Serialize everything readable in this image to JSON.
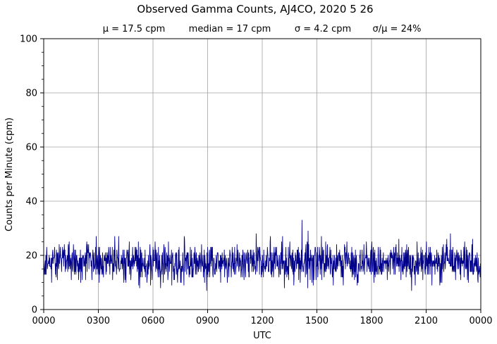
{
  "chart_data": {
    "type": "line",
    "title": "Observed Gamma Counts, AJ4CO, 2020 5 26",
    "subtitle": {
      "mean": "μ = 17.5 cpm",
      "median": "median = 17 cpm",
      "sigma": "σ = 4.2 cpm",
      "ratio": "σ/μ = 24%"
    },
    "xlabel": "UTC",
    "ylabel": "Counts per Minute (cpm)",
    "xlim_minutes": [
      0,
      1440
    ],
    "ylim": [
      0,
      100
    ],
    "x_ticks": [
      {
        "minute": 0,
        "label": "0000"
      },
      {
        "minute": 180,
        "label": "0300"
      },
      {
        "minute": 360,
        "label": "0600"
      },
      {
        "minute": 540,
        "label": "0900"
      },
      {
        "minute": 720,
        "label": "1200"
      },
      {
        "minute": 900,
        "label": "1500"
      },
      {
        "minute": 1080,
        "label": "1800"
      },
      {
        "minute": 1260,
        "label": "2100"
      },
      {
        "minute": 1440,
        "label": "0000"
      }
    ],
    "y_ticks": [
      0,
      20,
      40,
      60,
      80,
      100
    ],
    "y_minor_step": 5,
    "grid": true,
    "series": [
      {
        "color": "#00008b",
        "sampling": "one value per minute",
        "mean": 17.5,
        "median": 17,
        "std": 4.2,
        "min": 7,
        "max": 33,
        "notable_points": [
          {
            "minute": 851,
            "value": 33
          },
          {
            "minute": 1212,
            "value": 7
          },
          {
            "minute": 385,
            "value": 8
          },
          {
            "minute": 537,
            "value": 7
          }
        ]
      }
    ]
  }
}
